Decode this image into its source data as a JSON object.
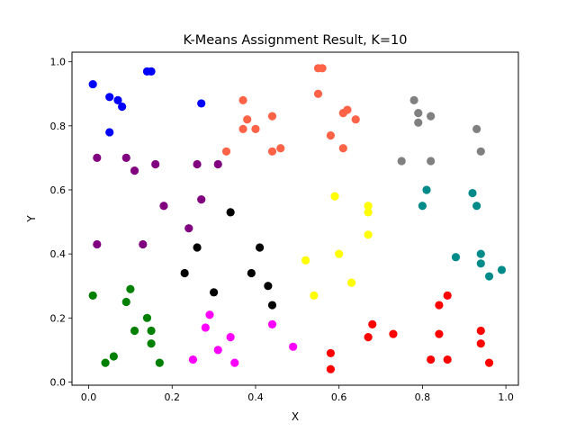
{
  "chart_data": {
    "type": "scatter",
    "title": "K-Means Assignment Result, K=10",
    "xlabel": "X",
    "ylabel": "Y",
    "xlim": [
      -0.04,
      1.03
    ],
    "ylim": [
      -0.01,
      1.03
    ],
    "xticks": [
      "0.0",
      "0.2",
      "0.4",
      "0.6",
      "0.8",
      "1.0"
    ],
    "yticks": [
      "0.0",
      "0.2",
      "0.4",
      "0.6",
      "0.8",
      "1.0"
    ],
    "grid": false,
    "series": [
      {
        "color": "#0000ff",
        "points": [
          [
            0.01,
            0.93
          ],
          [
            0.05,
            0.89
          ],
          [
            0.07,
            0.88
          ],
          [
            0.08,
            0.86
          ],
          [
            0.05,
            0.78
          ],
          [
            0.14,
            0.97
          ],
          [
            0.15,
            0.97
          ],
          [
            0.27,
            0.87
          ]
        ]
      },
      {
        "color": "#800080",
        "points": [
          [
            0.02,
            0.7
          ],
          [
            0.09,
            0.7
          ],
          [
            0.11,
            0.66
          ],
          [
            0.16,
            0.68
          ],
          [
            0.26,
            0.68
          ],
          [
            0.31,
            0.68
          ],
          [
            0.18,
            0.55
          ],
          [
            0.27,
            0.57
          ],
          [
            0.24,
            0.48
          ],
          [
            0.13,
            0.43
          ],
          [
            0.02,
            0.43
          ]
        ]
      },
      {
        "color": "#ff6347",
        "points": [
          [
            0.55,
            0.98
          ],
          [
            0.56,
            0.98
          ],
          [
            0.55,
            0.9
          ],
          [
            0.37,
            0.88
          ],
          [
            0.38,
            0.82
          ],
          [
            0.37,
            0.79
          ],
          [
            0.4,
            0.79
          ],
          [
            0.44,
            0.83
          ],
          [
            0.33,
            0.72
          ],
          [
            0.44,
            0.72
          ],
          [
            0.46,
            0.73
          ],
          [
            0.58,
            0.77
          ],
          [
            0.61,
            0.84
          ],
          [
            0.62,
            0.85
          ],
          [
            0.61,
            0.73
          ],
          [
            0.64,
            0.82
          ]
        ]
      },
      {
        "color": "#808080",
        "points": [
          [
            0.78,
            0.88
          ],
          [
            0.79,
            0.84
          ],
          [
            0.79,
            0.81
          ],
          [
            0.82,
            0.83
          ],
          [
            0.93,
            0.79
          ],
          [
            0.94,
            0.72
          ],
          [
            0.75,
            0.69
          ],
          [
            0.82,
            0.69
          ]
        ]
      },
      {
        "color": "#000000",
        "points": [
          [
            0.34,
            0.53
          ],
          [
            0.26,
            0.42
          ],
          [
            0.41,
            0.42
          ],
          [
            0.23,
            0.34
          ],
          [
            0.39,
            0.34
          ],
          [
            0.43,
            0.3
          ],
          [
            0.3,
            0.28
          ],
          [
            0.44,
            0.24
          ]
        ]
      },
      {
        "color": "#ffff00",
        "points": [
          [
            0.59,
            0.58
          ],
          [
            0.67,
            0.55
          ],
          [
            0.67,
            0.53
          ],
          [
            0.67,
            0.46
          ],
          [
            0.6,
            0.4
          ],
          [
            0.52,
            0.38
          ],
          [
            0.63,
            0.31
          ],
          [
            0.54,
            0.27
          ]
        ]
      },
      {
        "color": "#008b8b",
        "points": [
          [
            0.81,
            0.6
          ],
          [
            0.92,
            0.59
          ],
          [
            0.93,
            0.55
          ],
          [
            0.8,
            0.55
          ],
          [
            0.88,
            0.39
          ],
          [
            0.94,
            0.4
          ],
          [
            0.94,
            0.37
          ],
          [
            0.99,
            0.35
          ],
          [
            0.96,
            0.33
          ]
        ]
      },
      {
        "color": "#008000",
        "points": [
          [
            0.01,
            0.27
          ],
          [
            0.1,
            0.29
          ],
          [
            0.09,
            0.25
          ],
          [
            0.14,
            0.2
          ],
          [
            0.11,
            0.16
          ],
          [
            0.15,
            0.16
          ],
          [
            0.15,
            0.12
          ],
          [
            0.06,
            0.08
          ],
          [
            0.04,
            0.06
          ],
          [
            0.17,
            0.06
          ]
        ]
      },
      {
        "color": "#ff00ff",
        "points": [
          [
            0.29,
            0.21
          ],
          [
            0.28,
            0.17
          ],
          [
            0.44,
            0.18
          ],
          [
            0.34,
            0.14
          ],
          [
            0.31,
            0.1
          ],
          [
            0.49,
            0.11
          ],
          [
            0.25,
            0.07
          ],
          [
            0.35,
            0.06
          ]
        ]
      },
      {
        "color": "#ff0000",
        "points": [
          [
            0.68,
            0.18
          ],
          [
            0.73,
            0.15
          ],
          [
            0.67,
            0.14
          ],
          [
            0.58,
            0.09
          ],
          [
            0.58,
            0.04
          ],
          [
            0.86,
            0.27
          ],
          [
            0.84,
            0.24
          ],
          [
            0.84,
            0.15
          ],
          [
            0.82,
            0.07
          ],
          [
            0.86,
            0.07
          ],
          [
            0.94,
            0.16
          ],
          [
            0.94,
            0.12
          ],
          [
            0.96,
            0.06
          ]
        ]
      }
    ]
  }
}
